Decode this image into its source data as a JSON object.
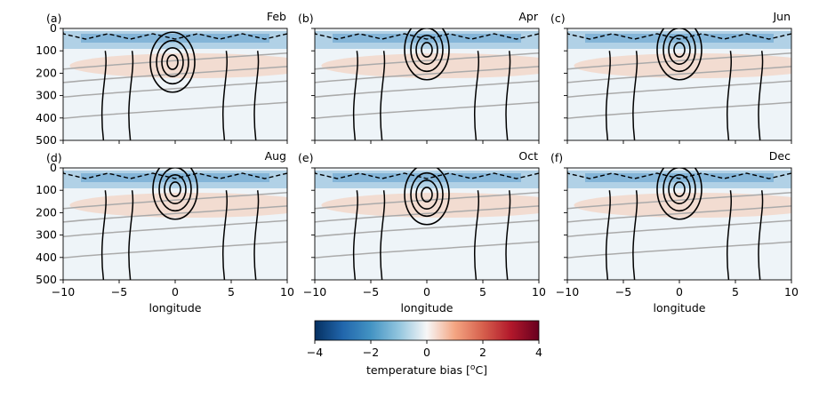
{
  "chart_data": {
    "type": "heatmap",
    "colorbar": {
      "label": "temperature bias [$^o$C]",
      "label_display": "temperature bias [",
      "label_unit": "C]",
      "label_sup": "o",
      "ticks": [
        "−4",
        "−2",
        "0",
        "2",
        "4"
      ],
      "range": [
        -4,
        4
      ],
      "colormap": "RdBu_r"
    },
    "xlim": [
      -10,
      10
    ],
    "ylim": [
      500,
      0
    ],
    "xticks": [
      "−10",
      "−5",
      "0",
      "5",
      "10"
    ],
    "yticks": [
      "0",
      "100",
      "200",
      "300",
      "400",
      "500"
    ],
    "xlabel": "longitude",
    "panels": [
      {
        "label": "(a)",
        "month": "Feb"
      },
      {
        "label": "(b)",
        "month": "Apr"
      },
      {
        "label": "(c)",
        "month": "Jun"
      },
      {
        "label": "(d)",
        "month": "Aug"
      },
      {
        "label": "(e)",
        "month": "Oct"
      },
      {
        "label": "(f)",
        "month": "Dec"
      }
    ],
    "colors": {
      "negative": "#053061",
      "neutral": "#f7f7f7",
      "positive": "#67001f",
      "contour": "#000000",
      "isotherm": "#aaaaaa"
    }
  }
}
